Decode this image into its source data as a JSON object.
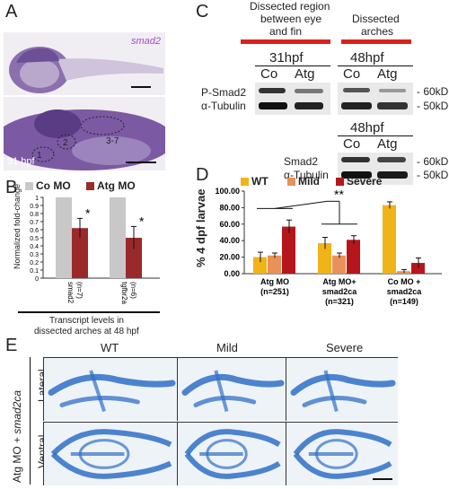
{
  "panels": {
    "A": "A",
    "B": "B",
    "C": "C",
    "D": "D",
    "E": "E"
  },
  "panelA": {
    "gene": "smad2",
    "stage": "31 hpf",
    "regions": [
      "1",
      "2",
      "3-7"
    ]
  },
  "panelB": {
    "legend": [
      "Co MO",
      "Atg MO"
    ],
    "ylabel": "Normalized fold-change",
    "yticks": [
      "0",
      "0.1",
      "0.2",
      "0.3",
      "0.4",
      "0.5",
      "0.6",
      "0.7",
      "0.8",
      "0.9",
      "1"
    ],
    "groups": [
      "smad2\n(n=7)",
      "tgfbr2a\n(n=6)"
    ],
    "group_labels": [
      "smad2",
      "tgfbr2a"
    ],
    "group_n": [
      "(n=7)",
      "(n=6)"
    ],
    "caption_line1": "Transcript levels in",
    "caption_line2": "dissected arches at 48 hpf",
    "sig": "*"
  },
  "panelC": {
    "header1_line1": "Dissected region",
    "header1_line2": "between eye",
    "header1_line3": "and fin",
    "header2_line1": "Dissected",
    "header2_line2": "arches",
    "time1": "31hpf",
    "time2": "48hpf",
    "time3": "48hpf",
    "co": "Co",
    "atg": "Atg",
    "row1": "P-Smad2",
    "row2": "α-Tubulin",
    "row3": "Smad2",
    "row4": "α-Tubulin",
    "mw1": "- 60kD",
    "mw2": "- 50kD",
    "mw3": "- 60kD",
    "mw4": "- 50kD"
  },
  "panelD": {
    "ylabel": "% 4 dpf larvae",
    "sig": "**",
    "group_line1": [
      "Atg MO",
      "Atg MO+",
      "Co MO +"
    ],
    "group_line2": [
      "(n=251)",
      "smad2ca",
      "smad2ca"
    ],
    "group_line3": [
      "",
      "(n=321)",
      "(n=149)"
    ]
  },
  "panelE": {
    "columns": [
      "WT",
      "Mild",
      "Severe"
    ],
    "rows": [
      "Lateral",
      "Ventral"
    ],
    "side_label_prefix": "Atg MO + ",
    "side_label_italic": "smad2ca"
  },
  "colors": {
    "co": "#c8c8c8",
    "atg": "#9a2a2a",
    "wt": "#f0b31a",
    "mild": "#e8925a",
    "severe": "#b5161c",
    "alcian": "#2f6fc7"
  },
  "chart_data": [
    {
      "type": "bar",
      "categories": [
        "smad2",
        "tgfbr2a"
      ],
      "series": [
        {
          "name": "Co MO",
          "values": [
            1.0,
            1.0
          ]
        },
        {
          "name": "Atg MO",
          "values": [
            0.62,
            0.5
          ]
        }
      ],
      "errors": [
        [
          0.0,
          0.0
        ],
        [
          0.12,
          0.14
        ]
      ],
      "ylabel": "Normalized fold-change",
      "ylim": [
        0,
        1
      ],
      "legend": "top"
    },
    {
      "type": "bar",
      "categories": [
        "Atg MO (n=251)",
        "Atg MO+ smad2ca (n=321)",
        "Co MO + smad2ca (n=149)"
      ],
      "series": [
        {
          "name": "WT",
          "values": [
            20,
            37,
            83
          ]
        },
        {
          "name": "Mild",
          "values": [
            22,
            22,
            3
          ]
        },
        {
          "name": "Severe",
          "values": [
            57,
            41,
            13
          ]
        }
      ],
      "errors": [
        [
          6,
          7,
          4
        ],
        [
          3,
          3,
          2
        ],
        [
          8,
          5,
          6
        ]
      ],
      "ylabel": "% 4 dpf larvae",
      "ylim": [
        0,
        100
      ],
      "yticks": [
        "0.00",
        "20.00",
        "40.00",
        "60.00",
        "80.00",
        "100.00"
      ],
      "legend": "top"
    }
  ]
}
